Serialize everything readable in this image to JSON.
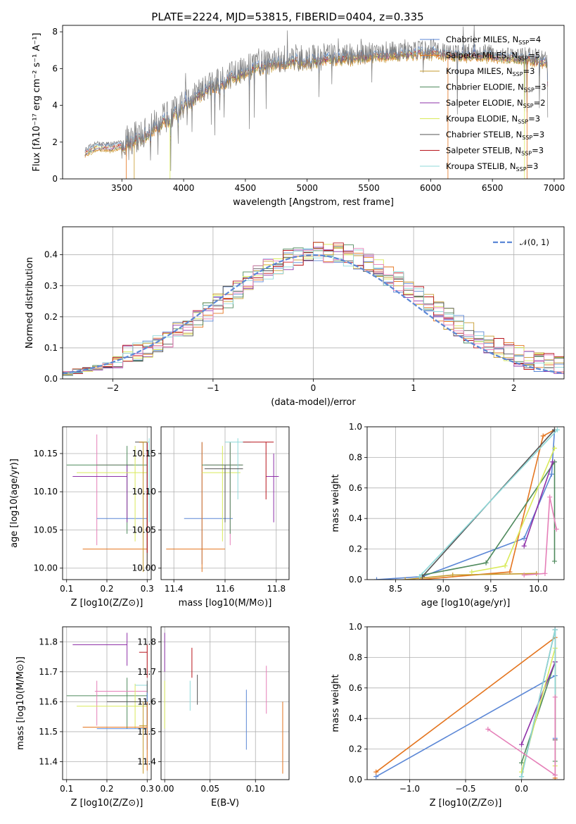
{
  "colors": {
    "Chabrier MILES": "#5b87d6",
    "Salpeter MILES": "#e4751f",
    "Kroupa MILES": "#c59a2c",
    "Chabrier ELODIE": "#4f8a5d",
    "Salpeter ELODIE": "#8e31a8",
    "Kroupa ELODIE": "#d9ea5a",
    "Chabrier STELIB": "#555555",
    "Salpeter STELIB": "#b8141c",
    "Kroupa STELIB": "#8fd9d9",
    "pink": "#e57fb8",
    "gaussian": "#5b87d6"
  },
  "chart_data": [
    {
      "id": "spectrum",
      "type": "line",
      "title": "PLATE=2224, MJD=53815, FIBERID=0404, z=0.335",
      "xlabel": "wavelength [Angstrom, rest frame]",
      "ylabel": "Flux [fλ10⁻¹⁷ erg cm⁻² s⁻¹ A⁻¹]",
      "xlim": [
        3020,
        7080
      ],
      "ylim": [
        0,
        8.35
      ],
      "xticks": [
        "3500",
        "4000",
        "4500",
        "5000",
        "5500",
        "6000",
        "6500",
        "7000"
      ],
      "yticks": [
        "0",
        "2",
        "4",
        "6",
        "8"
      ],
      "grid": false,
      "legend_placement": "right",
      "legend": [
        {
          "label": "Chabrier MILES, N",
          "sub": "SSP",
          "suffix": "=4",
          "key": "Chabrier MILES"
        },
        {
          "label": "Salpeter MILES, N",
          "sub": "SSP",
          "suffix": "=5",
          "key": "Salpeter MILES"
        },
        {
          "label": "Kroupa MILES, N",
          "sub": "SSP",
          "suffix": "=3",
          "key": "Kroupa MILES"
        },
        {
          "label": "Chabrier ELODIE, N",
          "sub": "SSP",
          "suffix": "=3",
          "key": "Chabrier ELODIE"
        },
        {
          "label": "Salpeter ELODIE, N",
          "sub": "SSP",
          "suffix": "=2",
          "key": "Salpeter ELODIE"
        },
        {
          "label": "Kroupa ELODIE, N",
          "sub": "SSP",
          "suffix": "=3",
          "key": "Kroupa ELODIE"
        },
        {
          "label": "Chabrier STELIB, N",
          "sub": "SSP",
          "suffix": "=3",
          "key": "Chabrier STELIB"
        },
        {
          "label": "Salpeter STELIB, N",
          "sub": "SSP",
          "suffix": "=3",
          "key": "Salpeter STELIB"
        },
        {
          "label": "Kroupa STELIB, N",
          "sub": "SSP",
          "suffix": "=3",
          "key": "Kroupa STELIB"
        }
      ],
      "continuum_x": [
        3200,
        3250,
        3300,
        3400,
        3500,
        3600,
        3700,
        3800,
        3900,
        4000,
        4100,
        4200,
        4300,
        4400,
        4500,
        4600,
        4700,
        4800,
        4900,
        5000,
        5200,
        5400,
        5600,
        5800,
        6000,
        6200,
        6400,
        6600,
        6800,
        6950
      ],
      "continuum_y": [
        1.4,
        1.6,
        1.75,
        1.7,
        1.8,
        2.0,
        2.4,
        2.9,
        3.3,
        3.9,
        4.4,
        4.9,
        5.1,
        5.5,
        5.8,
        6.0,
        6.2,
        6.3,
        6.4,
        6.35,
        6.5,
        6.6,
        6.7,
        6.8,
        6.85,
        6.7,
        6.7,
        6.6,
        6.5,
        6.3
      ]
    },
    {
      "id": "residuals",
      "type": "histogram",
      "xlabel": "(data-model)/error",
      "ylabel": "Normed distribution",
      "xlim": [
        -2.5,
        2.5
      ],
      "ylim": [
        0,
        0.49
      ],
      "xticks": [
        "−2",
        "−1",
        "0",
        "1",
        "2"
      ],
      "yticks": [
        "0.0",
        "0.1",
        "0.2",
        "0.3",
        "0.4"
      ],
      "grid": true,
      "legend_placement": "top-right",
      "legend": [
        {
          "label": "𝒩(0, 1)",
          "key": "gaussian",
          "style": "dashed"
        }
      ],
      "bin_width": 0.1,
      "bin_start": -2.5,
      "bins": 50
    },
    {
      "id": "age_vs_Z",
      "type": "errorbar",
      "xlabel": "Z [log10(Z/Z⊙)]",
      "ylabel": "age  [log10(age/yr)]",
      "xlim": [
        0.09,
        0.31
      ],
      "ylim": [
        9.985,
        10.185
      ],
      "xticks": [
        "0.1",
        "0.2",
        "0.3"
      ],
      "yticks": [
        "10.00",
        "10.05",
        "10.10",
        "10.15"
      ],
      "grid": true,
      "points": [
        {
          "key": "pink",
          "x": 0.175,
          "y": 10.135,
          "xerr": [
            0.175,
            0.265
          ],
          "yerr": [
            10.03,
            10.175
          ]
        },
        {
          "key": "Chabrier MILES",
          "x": 0.3,
          "y": 10.065,
          "xerr": [
            0.175,
            0.3
          ],
          "yerr": [
            10.005,
            10.165
          ]
        },
        {
          "key": "Salpeter MILES",
          "x": 0.3,
          "y": 10.025,
          "xerr": [
            0.14,
            0.3
          ],
          "yerr": [
            10.0,
            10.1
          ]
        },
        {
          "key": "Chabrier ELODIE",
          "x": 0.25,
          "y": 10.135,
          "xerr": [
            0.1,
            0.3
          ],
          "yerr": [
            10.045,
            10.16
          ]
        },
        {
          "key": "Salpeter ELODIE",
          "x": 0.25,
          "y": 10.12,
          "xerr": [
            0.115,
            0.25
          ],
          "yerr": [
            10.06,
            10.135
          ]
        },
        {
          "key": "Kroupa ELODIE",
          "x": 0.27,
          "y": 10.125,
          "xerr": [
            0.125,
            0.3
          ],
          "yerr": [
            10.035,
            10.16
          ]
        },
        {
          "key": "Chabrier STELIB",
          "x": 0.3,
          "y": 10.165,
          "xerr": [
            0.27,
            0.3
          ],
          "yerr": [
            10.0,
            10.165
          ]
        },
        {
          "key": "Salpeter STELIB",
          "x": 0.3,
          "y": 10.165,
          "xerr": [
            0.28,
            0.3
          ],
          "yerr": [
            10.02,
            10.165
          ]
        },
        {
          "key": "Kroupa STELIB",
          "x": 0.305,
          "y": 10.165,
          "xerr": [
            0.29,
            0.305
          ],
          "yerr": [
            10.06,
            10.17
          ]
        },
        {
          "key": "Kroupa MILES",
          "x": 0.29,
          "y": 10.165,
          "xerr": [
            0.28,
            0.3
          ],
          "yerr": [
            9.995,
            10.165
          ]
        }
      ]
    },
    {
      "id": "age_vs_mass",
      "type": "errorbar",
      "xlabel": "mass [log10(M/M⊙)]",
      "ylabel": "",
      "xlim": [
        11.35,
        11.85
      ],
      "ylim": [
        9.985,
        10.185
      ],
      "xticks": [
        "11.4",
        "11.6",
        "11.8"
      ],
      "yticks": [
        "10.00",
        "10.05",
        "10.10",
        "10.15"
      ],
      "grid": true,
      "points": [
        {
          "key": "Chabrier MILES",
          "x": 11.51,
          "y": 10.065,
          "xerr": [
            11.44,
            11.63
          ],
          "yerr": [
            10.005,
            10.165
          ]
        },
        {
          "key": "Salpeter MILES",
          "x": 11.51,
          "y": 10.025,
          "xerr": [
            11.37,
            11.6
          ],
          "yerr": [
            9.995,
            10.165
          ]
        },
        {
          "key": "Salpeter ELODIE",
          "x": 11.79,
          "y": 10.12,
          "xerr": [
            11.76,
            11.81
          ],
          "yerr": [
            10.06,
            10.15
          ]
        },
        {
          "key": "Kroupa ELODIE",
          "x": 11.59,
          "y": 10.125,
          "xerr": [
            11.51,
            11.66
          ],
          "yerr": [
            10.035,
            10.16
          ]
        },
        {
          "key": "pink",
          "x": 11.62,
          "y": 10.135,
          "xerr": [
            11.52,
            11.67
          ],
          "yerr": [
            10.03,
            10.165
          ]
        },
        {
          "key": "Chabrier ELODIE",
          "x": 11.62,
          "y": 10.135,
          "xerr": [
            11.51,
            11.67
          ],
          "yerr": [
            10.045,
            10.165
          ]
        },
        {
          "key": "Kroupa STELIB",
          "x": 11.65,
          "y": 10.165,
          "xerr": [
            11.6,
            11.7
          ],
          "yerr": [
            10.09,
            10.17
          ]
        },
        {
          "key": "Salpeter STELIB",
          "x": 11.76,
          "y": 10.165,
          "xerr": [
            11.67,
            11.79
          ],
          "yerr": [
            10.09,
            10.165
          ]
        },
        {
          "key": "Chabrier STELIB",
          "x": 11.6,
          "y": 10.13,
          "xerr": [
            11.52,
            11.67
          ],
          "yerr": [
            10.06,
            10.135
          ]
        }
      ]
    },
    {
      "id": "massweight_vs_age",
      "type": "line",
      "xlabel": "age  [log10(age/yr)]",
      "ylabel": "mass weight",
      "xlim": [
        8.2,
        10.27
      ],
      "ylim": [
        0,
        1.0
      ],
      "xticks": [
        "8.5",
        "9.0",
        "9.5",
        "10.0"
      ],
      "yticks": [
        "0.0",
        "0.2",
        "0.4",
        "0.6",
        "0.8",
        "1.0"
      ],
      "grid": true,
      "series": [
        {
          "key": "Chabrier MILES",
          "x": [
            8.3,
            8.78,
            9.85,
            10.14,
            10.17
          ],
          "y": [
            0.0,
            0.02,
            0.27,
            0.69,
            0.98
          ]
        },
        {
          "key": "Salpeter MILES",
          "x": [
            8.75,
            9.7,
            10.05,
            10.17
          ],
          "y": [
            0.0,
            0.05,
            0.94,
            0.98
          ]
        },
        {
          "key": "Kroupa MILES",
          "x": [
            8.6,
            9.1,
            9.98
          ],
          "y": [
            0.0,
            0.03,
            0.04
          ]
        },
        {
          "key": "Chabrier ELODIE",
          "x": [
            8.78,
            9.45,
            10.17,
            10.17
          ],
          "y": [
            0.03,
            0.11,
            0.77,
            0.12
          ]
        },
        {
          "key": "Salpeter ELODIE",
          "x": [
            9.85,
            10.15
          ],
          "y": [
            0.22,
            0.77
          ]
        },
        {
          "key": "Kroupa ELODIE",
          "x": [
            9.3,
            9.65,
            10.17
          ],
          "y": [
            0.05,
            0.09,
            0.86
          ]
        },
        {
          "key": "Chabrier STELIB",
          "x": [
            8.78,
            10.17
          ],
          "y": [
            0.02,
            0.98
          ]
        },
        {
          "key": "Kroupa STELIB",
          "x": [
            8.75,
            10.2
          ],
          "y": [
            0.02,
            0.98
          ]
        },
        {
          "key": "pink",
          "x": [
            9.85,
            10.07,
            10.12,
            10.19
          ],
          "y": [
            0.03,
            0.04,
            0.54,
            0.33
          ]
        }
      ]
    },
    {
      "id": "mass_vs_Z",
      "type": "errorbar",
      "xlabel": "Z [log10(Z/Z⊙)]",
      "ylabel": "mass [log10(M/M⊙)]",
      "xlim": [
        0.09,
        0.31
      ],
      "ylim": [
        11.34,
        11.85
      ],
      "xticks": [
        "0.1",
        "0.2",
        "0.3"
      ],
      "yticks": [
        "11.4",
        "11.5",
        "11.6",
        "11.7",
        "11.8"
      ],
      "grid": true,
      "points": [
        {
          "key": "Salpeter ELODIE",
          "x": 0.25,
          "y": 11.79,
          "xerr": [
            0.115,
            0.25
          ],
          "yerr": [
            11.72,
            11.83
          ]
        },
        {
          "key": "Salpeter STELIB",
          "x": 0.3,
          "y": 11.765,
          "xerr": [
            0.28,
            0.3
          ],
          "yerr": [
            11.68,
            11.79
          ]
        },
        {
          "key": "Chabrier ELODIE",
          "x": 0.25,
          "y": 11.62,
          "xerr": [
            0.1,
            0.3
          ],
          "yerr": [
            11.51,
            11.68
          ]
        },
        {
          "key": "pink",
          "x": 0.175,
          "y": 11.635,
          "xerr": [
            0.17,
            0.3
          ],
          "yerr": [
            11.52,
            11.67
          ]
        },
        {
          "key": "Kroupa ELODIE",
          "x": 0.27,
          "y": 11.585,
          "xerr": [
            0.125,
            0.3
          ],
          "yerr": [
            11.51,
            11.66
          ]
        },
        {
          "key": "Kroupa STELIB",
          "x": 0.3,
          "y": 11.655,
          "xerr": [
            0.27,
            0.3
          ],
          "yerr": [
            11.6,
            11.66
          ]
        },
        {
          "key": "Chabrier STELIB",
          "x": 0.3,
          "y": 11.6,
          "xerr": [
            0.2,
            0.3
          ],
          "yerr": [
            11.52,
            11.67
          ]
        },
        {
          "key": "Chabrier MILES",
          "x": 0.3,
          "y": 11.51,
          "xerr": [
            0.175,
            0.3
          ],
          "yerr": [
            11.44,
            11.63
          ]
        },
        {
          "key": "Salpeter MILES",
          "x": 0.3,
          "y": 11.515,
          "xerr": [
            0.14,
            0.3
          ],
          "yerr": [
            11.37,
            11.6
          ]
        },
        {
          "key": "Kroupa MILES",
          "x": 0.29,
          "y": 11.52,
          "xerr": [
            0.28,
            0.3
          ],
          "yerr": [
            11.36,
            11.6
          ]
        }
      ]
    },
    {
      "id": "mass_vs_ebv",
      "type": "errorbar",
      "xlabel": "E(B-V)",
      "ylabel": "",
      "xlim": [
        -0.004,
        0.137
      ],
      "ylim": [
        11.34,
        11.85
      ],
      "xticks": [
        "0.00",
        "0.05",
        "0.10"
      ],
      "yticks": [
        "11.4",
        "11.5",
        "11.6",
        "11.7",
        "11.8"
      ],
      "grid": true,
      "points": [
        {
          "key": "Salpeter ELODIE",
          "x": 0.0,
          "y": 11.76,
          "yerr": [
            11.7,
            11.83
          ]
        },
        {
          "key": "Kroupa ELODIE",
          "x": 0.0,
          "y": 11.58,
          "yerr": [
            11.51,
            11.67
          ]
        },
        {
          "key": "Kroupa STELIB",
          "x": 0.028,
          "y": 11.62,
          "yerr": [
            11.57,
            11.67
          ]
        },
        {
          "key": "Salpeter STELIB",
          "x": 0.03,
          "y": 11.73,
          "yerr": [
            11.68,
            11.78
          ]
        },
        {
          "key": "Chabrier STELIB",
          "x": 0.036,
          "y": 11.64,
          "yerr": [
            11.59,
            11.69
          ]
        },
        {
          "key": "Chabrier MILES",
          "x": 0.09,
          "y": 11.54,
          "yerr": [
            11.44,
            11.64
          ]
        },
        {
          "key": "pink",
          "x": 0.112,
          "y": 11.64,
          "yerr": [
            11.56,
            11.72
          ]
        },
        {
          "key": "Salpeter MILES",
          "x": 0.13,
          "y": 11.48,
          "yerr": [
            11.36,
            11.6
          ]
        }
      ]
    },
    {
      "id": "massweight_vs_Z",
      "type": "line",
      "xlabel": "Z [log10(Z/Z⊙)]",
      "ylabel": "mass weight",
      "xlim": [
        -1.38,
        0.38
      ],
      "ylim": [
        0,
        1.0
      ],
      "xticks": [
        "−1.0",
        "−0.5",
        "0.0"
      ],
      "yticks": [
        "0.0",
        "0.2",
        "0.4",
        "0.6",
        "0.8",
        "1.0"
      ],
      "grid": true,
      "series": [
        {
          "key": "Chabrier MILES",
          "x": [
            -1.3,
            0.3,
            0.3,
            0.3
          ],
          "y": [
            0.02,
            0.68,
            0.27,
            0.98
          ]
        },
        {
          "key": "Salpeter MILES",
          "x": [
            -1.3,
            0.3,
            0.3
          ],
          "y": [
            0.05,
            0.93,
            0.01
          ]
        },
        {
          "key": "Chabrier ELODIE",
          "x": [
            0.0,
            0.3,
            0.3
          ],
          "y": [
            0.11,
            0.77,
            0.12
          ]
        },
        {
          "key": "Salpeter ELODIE",
          "x": [
            0.0,
            0.3
          ],
          "y": [
            0.23,
            0.77
          ]
        },
        {
          "key": "Kroupa ELODIE",
          "x": [
            0.0,
            0.3,
            0.3
          ],
          "y": [
            0.05,
            0.86,
            0.09
          ]
        },
        {
          "key": "Chabrier STELIB",
          "x": [
            0.0,
            0.3,
            0.3
          ],
          "y": [
            0.02,
            0.98,
            0.26
          ]
        },
        {
          "key": "Kroupa STELIB",
          "x": [
            0.0,
            0.3,
            0.3
          ],
          "y": [
            0.02,
            0.98,
            0.03
          ]
        },
        {
          "key": "pink",
          "x": [
            -0.3,
            0.3,
            0.3
          ],
          "y": [
            0.33,
            0.03,
            0.54
          ]
        }
      ]
    }
  ]
}
